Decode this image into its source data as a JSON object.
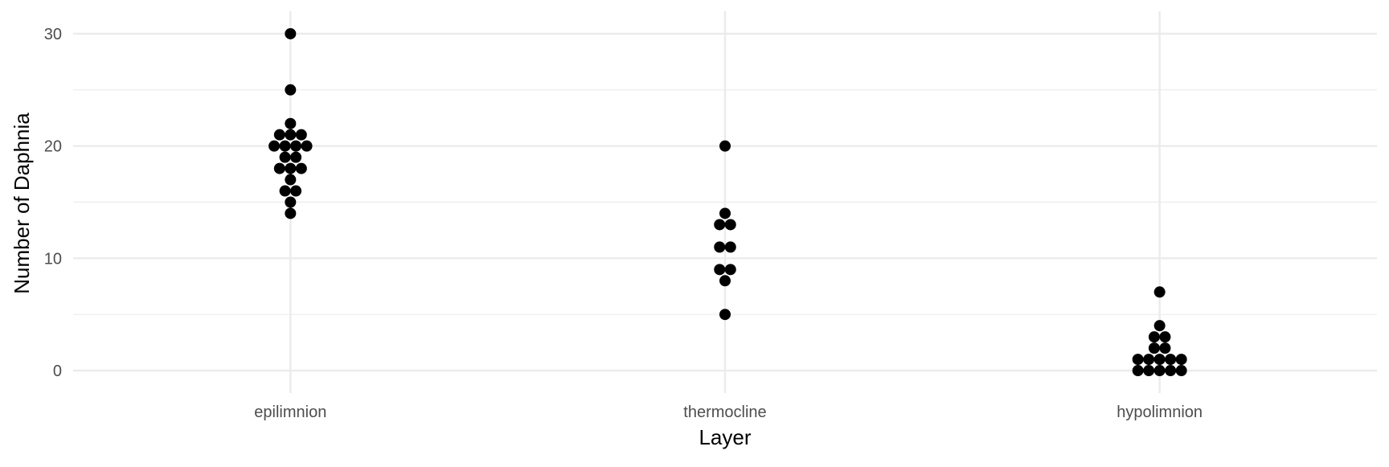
{
  "chart_data": {
    "type": "scatter",
    "subtype": "dotplot",
    "categories": [
      "epilimnion",
      "thermocline",
      "hypolimnion"
    ],
    "series": [
      {
        "category": "epilimnion",
        "values": [
          14,
          15,
          16,
          16,
          17,
          18,
          18,
          18,
          19,
          19,
          20,
          20,
          20,
          20,
          21,
          21,
          21,
          22,
          25,
          30
        ]
      },
      {
        "category": "thermocline",
        "values": [
          5,
          8,
          9,
          9,
          11,
          11,
          13,
          13,
          14,
          20
        ]
      },
      {
        "category": "hypolimnion",
        "values": [
          0,
          0,
          0,
          0,
          0,
          1,
          1,
          1,
          1,
          1,
          2,
          2,
          3,
          3,
          4,
          7
        ]
      }
    ],
    "xlabel": "Layer",
    "ylabel": "Number of Daphnia",
    "ylim": [
      -2,
      32
    ],
    "yticks": [
      0,
      10,
      20,
      30
    ],
    "grid": true,
    "point_color": "#000000",
    "grid_color": "#ebebeb",
    "background": "#ffffff"
  }
}
